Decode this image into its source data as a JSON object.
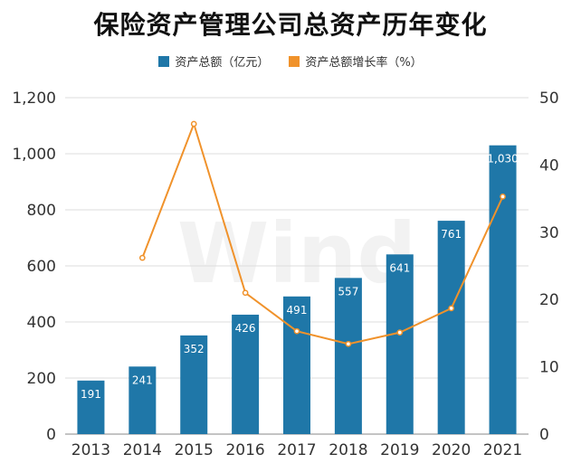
{
  "chart_data": {
    "type": "bar",
    "title": "保险资产管理公司总资产历年变化",
    "categories": [
      "2013",
      "2014",
      "2015",
      "2016",
      "2017",
      "2018",
      "2019",
      "2020",
      "2021"
    ],
    "series": [
      {
        "name": "资产总额（亿元）",
        "type": "bar",
        "axis": "left",
        "color": "#1f77a8",
        "values": [
          191,
          241,
          352,
          426,
          491,
          557,
          641,
          761,
          1030
        ],
        "labels": [
          "191",
          "241",
          "352",
          "426",
          "491",
          "557",
          "641",
          "761",
          "1,030"
        ]
      },
      {
        "name": "资产总额增长率（%）",
        "type": "line",
        "axis": "right",
        "color": "#f0922b",
        "values": [
          null,
          26.2,
          46.1,
          21.0,
          15.3,
          13.4,
          15.1,
          18.7,
          35.3
        ]
      }
    ],
    "y_left": {
      "ylim": [
        0,
        1200
      ],
      "ticks": [
        "0",
        "200",
        "400",
        "600",
        "800",
        "1,000",
        "1,200"
      ]
    },
    "y_right": {
      "ylim": [
        0,
        50
      ],
      "ticks": [
        "0",
        "10",
        "20",
        "30",
        "40",
        "50"
      ]
    },
    "grid": true,
    "legend_position": "top-center",
    "watermark": "Wind"
  }
}
